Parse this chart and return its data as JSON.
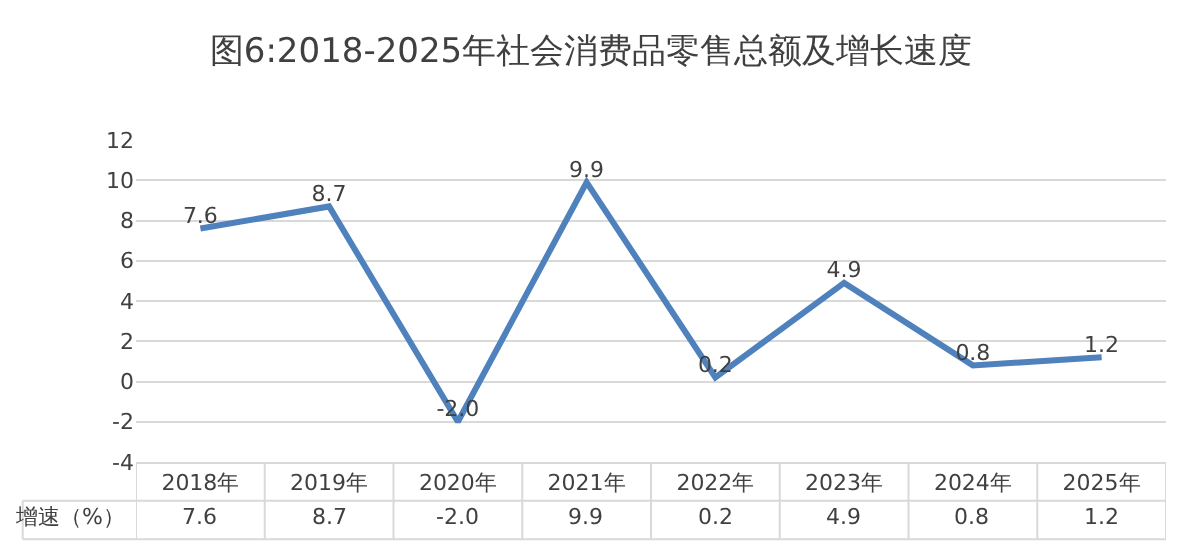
{
  "chart_data": {
    "type": "line",
    "title": "图6:2018-2025年社会消费品零售总额及增长速度",
    "categories": [
      "2018年",
      "2019年",
      "2020年",
      "2021年",
      "2022年",
      "2023年",
      "2024年",
      "2025年"
    ],
    "series": [
      {
        "name": "增速（%）",
        "color": "#4f81bd",
        "values": [
          7.6,
          8.7,
          -2.0,
          9.9,
          0.2,
          4.9,
          0.8,
          1.2
        ],
        "value_labels": [
          "7.6",
          "8.7",
          "-2.0",
          "9.9",
          "0.2",
          "4.9",
          "0.8",
          "1.2"
        ]
      }
    ],
    "ylim": [
      -4,
      12
    ],
    "yticks": [
      -4,
      -2,
      0,
      2,
      4,
      6,
      8,
      10,
      12
    ],
    "grid": "y",
    "marker": "none",
    "line_style": "solid",
    "legend": false
  }
}
